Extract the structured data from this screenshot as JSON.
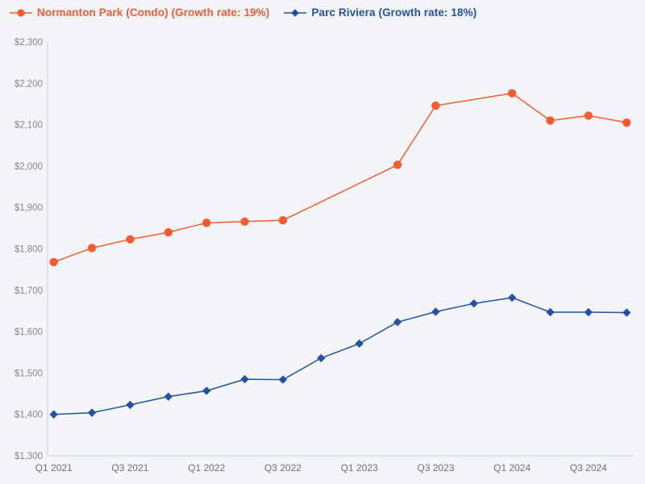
{
  "colors": {
    "background": "#f4f5f8",
    "axis_line": "#ccd6e8",
    "y_tick_label": "#83868c",
    "x_tick_label": "#6d7076"
  },
  "chart_data": {
    "type": "line",
    "title": "",
    "xlabel": "",
    "ylabel": "",
    "grid": false,
    "legend_position": "top-left",
    "ylim": [
      1300,
      2300
    ],
    "ytick_step": 100,
    "y_tick_labels": [
      "$1,300",
      "$1,400",
      "$1,500",
      "$1,600",
      "$1,700",
      "$1,800",
      "$1,900",
      "$2,000",
      "$2,100",
      "$2,200",
      "$2,300"
    ],
    "categories": [
      "Q1 2021",
      "Q2 2021",
      "Q3 2021",
      "Q4 2021",
      "Q1 2022",
      "Q2 2022",
      "Q3 2022",
      "Q4 2022",
      "Q1 2023",
      "Q2 2023",
      "Q3 2023",
      "Q4 2023",
      "Q1 2024",
      "Q2 2024",
      "Q3 2024",
      "Q4 2024"
    ],
    "x_tick_labels": [
      "Q1 2021",
      "Q3 2021",
      "Q1 2022",
      "Q3 2022",
      "Q1 2023",
      "Q3 2023",
      "Q1 2024",
      "Q3 2024"
    ],
    "x_tick_every": 2,
    "series": [
      {
        "name": "Normanton Park (Condo) (Growth rate: 19%)",
        "growth_rate": "19%",
        "color": "#f95a32",
        "marker": "circle",
        "values": [
          1768,
          1802,
          1823,
          1840,
          1863,
          1866,
          1869,
          null,
          null,
          2003,
          2146,
          null,
          2176,
          2110,
          2122,
          2105
        ]
      },
      {
        "name": "Parc Riviera (Growth rate: 18%)",
        "growth_rate": "18%",
        "color": "#2152a5",
        "marker": "diamond",
        "values": [
          1400,
          1404,
          1423,
          1443,
          1457,
          1485,
          1484,
          1536,
          1571,
          1623,
          1648,
          1668,
          1682,
          1647,
          1647,
          1646
        ]
      }
    ]
  }
}
